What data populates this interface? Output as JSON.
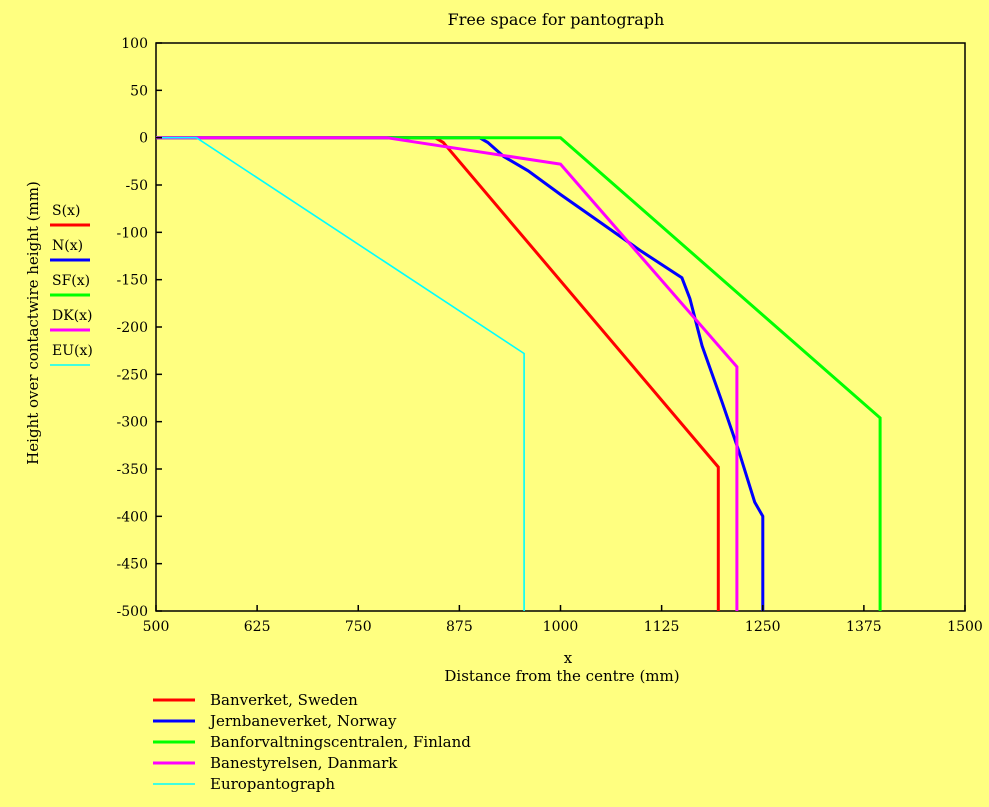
{
  "chart_data": {
    "type": "line",
    "title": "Free space for pantograph",
    "xlabel": "x",
    "xlabel_sub": "Distance from the centre (mm)",
    "ylabel": "Height over contactwire height (mm)",
    "xlim": [
      500,
      1500
    ],
    "ylim": [
      -500,
      100
    ],
    "xticks": [
      "500",
      "625",
      "750",
      "875",
      "1000",
      "1125",
      "1250",
      "1375",
      "1500"
    ],
    "yticks": [
      "100",
      "50",
      "0",
      "-50",
      "-100",
      "-150",
      "-200",
      "-250",
      "-300",
      "-350",
      "-400",
      "-450",
      "-500"
    ],
    "grid": false,
    "background": "#ffff80",
    "series": [
      {
        "key": "S(x)",
        "name": "Banverket, Sweden",
        "color": "#ff0000",
        "points": [
          [
            500,
            0
          ],
          [
            845,
            0
          ],
          [
            855,
            -5
          ],
          [
            1195,
            -348
          ],
          [
            1195,
            -500
          ]
        ]
      },
      {
        "key": "N(x)",
        "name": "Jernbaneverket, Norway",
        "color": "#0000ff",
        "points": [
          [
            500,
            0
          ],
          [
            900,
            0
          ],
          [
            910,
            -5
          ],
          [
            930,
            -20
          ],
          [
            960,
            -35
          ],
          [
            1000,
            -60
          ],
          [
            1050,
            -90
          ],
          [
            1100,
            -120
          ],
          [
            1150,
            -148
          ],
          [
            1160,
            -170
          ],
          [
            1175,
            -220
          ],
          [
            1200,
            -280
          ],
          [
            1220,
            -330
          ],
          [
            1240,
            -385
          ],
          [
            1250,
            -400
          ],
          [
            1250,
            -500
          ]
        ]
      },
      {
        "key": "SF(x)",
        "name": "Banforvaltningscentralen, Finland",
        "color": "#00ff00",
        "points": [
          [
            500,
            0
          ],
          [
            1000,
            0
          ],
          [
            1395,
            -296
          ],
          [
            1395,
            -500
          ]
        ]
      },
      {
        "key": "DK(x)",
        "name": "Banestyrelsen, Danmark",
        "color": "#ff00ff",
        "points": [
          [
            500,
            0
          ],
          [
            785,
            0
          ],
          [
            1000,
            -28
          ],
          [
            1218,
            -242
          ],
          [
            1218,
            -500
          ]
        ]
      },
      {
        "key": "EU(x)",
        "name": "Europantograph",
        "color": "#00ffff",
        "points": [
          [
            500,
            0
          ],
          [
            550,
            0
          ],
          [
            955,
            -228
          ],
          [
            955,
            -500
          ]
        ]
      }
    ]
  }
}
